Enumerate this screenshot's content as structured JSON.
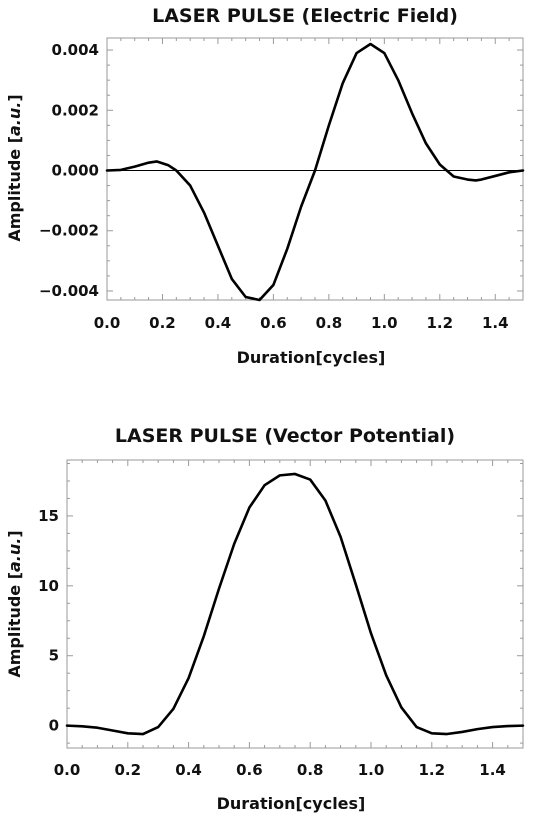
{
  "chart_data": [
    {
      "type": "line",
      "title": "LASER PULSE (Electric Field)",
      "xlabel": "Duration[cycles]",
      "ylabel_parts": {
        "prefix": "Amplitude [",
        "italic": "a.u.",
        "suffix": "]"
      },
      "xlim": [
        0,
        1.5
      ],
      "ylim": [
        -0.0043,
        0.0044
      ],
      "xticks": [
        0,
        0.2,
        0.4,
        0.6,
        0.8,
        1.0,
        1.2,
        1.4
      ],
      "xtick_labels": [
        "0.0",
        "0.2",
        "0.4",
        "0.6",
        "0.8",
        "1.0",
        "1.2",
        "1.4"
      ],
      "yticks": [
        -0.004,
        -0.002,
        0,
        0.002,
        0.004
      ],
      "ytick_labels": [
        "−0.004",
        "−0.002",
        "0.000",
        "0.002",
        "0.004"
      ],
      "zero_line": true,
      "grid": false,
      "line_color": "#000000",
      "series": [
        {
          "x": [
            0.0,
            0.05,
            0.1,
            0.15,
            0.18,
            0.22,
            0.25,
            0.3,
            0.35,
            0.4,
            0.45,
            0.5,
            0.55,
            0.6,
            0.65,
            0.7,
            0.75,
            0.8,
            0.85,
            0.9,
            0.95,
            1.0,
            1.05,
            1.1,
            1.15,
            1.2,
            1.25,
            1.3,
            1.33,
            1.35,
            1.4,
            1.45,
            1.5
          ],
          "y": [
            0.0,
            2e-05,
            0.00013,
            0.00026,
            0.0003,
            0.00018,
            0.0,
            -0.0005,
            -0.0014,
            -0.0025,
            -0.0036,
            -0.0042,
            -0.0043,
            -0.0038,
            -0.0026,
            -0.0012,
            0.0,
            0.0015,
            0.0029,
            0.0039,
            0.0042,
            0.0039,
            0.003,
            0.0019,
            0.0009,
            0.0002,
            -0.0002,
            -0.0003,
            -0.00033,
            -0.0003,
            -0.00018,
            -6e-05,
            0.0
          ]
        }
      ]
    },
    {
      "type": "line",
      "title": "LASER PULSE (Vector Potential)",
      "xlabel": "Duration[cycles]",
      "ylabel_parts": {
        "prefix": "Amplitude [",
        "italic": "a.u.",
        "suffix": "]"
      },
      "xlim": [
        0,
        1.5
      ],
      "ylim": [
        -1.6,
        19.0
      ],
      "xticks": [
        0,
        0.2,
        0.4,
        0.6,
        0.8,
        1.0,
        1.2,
        1.4
      ],
      "xtick_labels": [
        "0.0",
        "0.2",
        "0.4",
        "0.6",
        "0.8",
        "1.0",
        "1.2",
        "1.4"
      ],
      "yticks": [
        0,
        5,
        10,
        15
      ],
      "ytick_labels": [
        "0",
        "5",
        "10",
        "15"
      ],
      "zero_line": false,
      "grid": false,
      "line_color": "#000000",
      "series": [
        {
          "x": [
            0.0,
            0.05,
            0.1,
            0.15,
            0.2,
            0.25,
            0.3,
            0.35,
            0.4,
            0.45,
            0.5,
            0.55,
            0.6,
            0.65,
            0.7,
            0.75,
            0.8,
            0.85,
            0.9,
            0.95,
            1.0,
            1.05,
            1.1,
            1.15,
            1.2,
            1.25,
            1.3,
            1.35,
            1.4,
            1.45,
            1.5
          ],
          "y": [
            0.0,
            -0.05,
            -0.15,
            -0.35,
            -0.55,
            -0.6,
            -0.1,
            1.2,
            3.4,
            6.4,
            9.8,
            13.0,
            15.6,
            17.2,
            17.9,
            18.0,
            17.6,
            16.1,
            13.5,
            10.1,
            6.6,
            3.6,
            1.3,
            -0.1,
            -0.55,
            -0.6,
            -0.45,
            -0.25,
            -0.1,
            -0.03,
            0.0
          ]
        }
      ]
    }
  ]
}
